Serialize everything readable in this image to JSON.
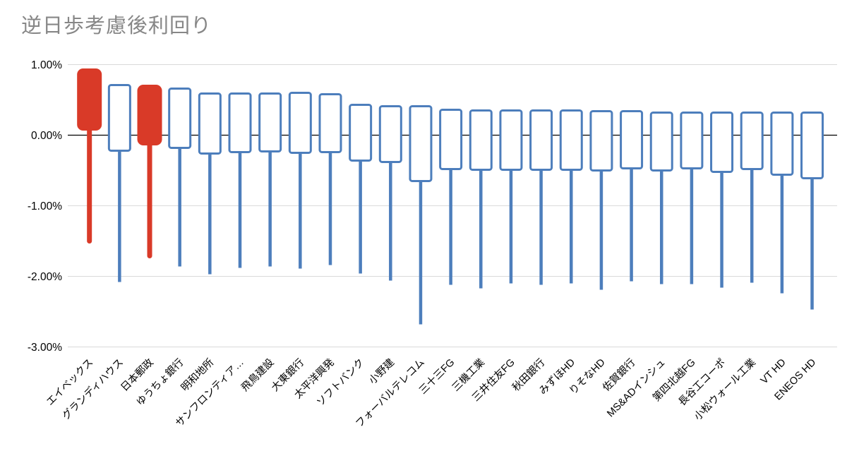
{
  "title": "逆日歩考慮後利回り",
  "colors": {
    "background": "#ffffff",
    "title_text": "#878787",
    "axis_text": "#000000",
    "gridline": "#dadada",
    "zero_line": "#000000",
    "candle_up_red": "#d93a28",
    "candle_down_blue": "#4d7ebc"
  },
  "chart_data": {
    "type": "candlestick",
    "title": "逆日歩考慮後利回り",
    "xlabel": "",
    "ylabel": "",
    "unit": "%",
    "ylim": [
      -3.0,
      1.0
    ],
    "grid": true,
    "legend": false,
    "y_ticks": [
      {
        "label": "1.00%",
        "value": 1.0
      },
      {
        "label": "0.00%",
        "value": 0.0
      },
      {
        "label": "-1.00%",
        "value": -1.0
      },
      {
        "label": "-2.00%",
        "value": -2.0
      },
      {
        "label": "-3.00%",
        "value": -3.0
      }
    ],
    "series": [
      {
        "label": "エイベックス",
        "body_top": 0.93,
        "body_bottom": 0.08,
        "low": -1.5,
        "variant": "red"
      },
      {
        "label": "グランディハウス",
        "body_top": 0.71,
        "body_bottom": -0.22,
        "low": -2.08,
        "variant": "blue"
      },
      {
        "label": "日本郵政",
        "body_top": 0.7,
        "body_bottom": -0.13,
        "low": -1.71,
        "variant": "red"
      },
      {
        "label": "ゆうちょ銀行",
        "body_top": 0.66,
        "body_bottom": -0.18,
        "low": -1.86,
        "variant": "blue"
      },
      {
        "label": "明和地所",
        "body_top": 0.59,
        "body_bottom": -0.26,
        "low": -1.97,
        "variant": "blue"
      },
      {
        "label": "サンフロンティア…",
        "body_top": 0.59,
        "body_bottom": -0.24,
        "low": -1.88,
        "variant": "blue"
      },
      {
        "label": "飛鳥建設",
        "body_top": 0.59,
        "body_bottom": -0.23,
        "low": -1.86,
        "variant": "blue"
      },
      {
        "label": "大東銀行",
        "body_top": 0.6,
        "body_bottom": -0.25,
        "low": -1.89,
        "variant": "blue"
      },
      {
        "label": "太平洋興発",
        "body_top": 0.58,
        "body_bottom": -0.24,
        "low": -1.84,
        "variant": "blue"
      },
      {
        "label": "ソフトバンク",
        "body_top": 0.43,
        "body_bottom": -0.36,
        "low": -1.96,
        "variant": "blue"
      },
      {
        "label": "小野建",
        "body_top": 0.41,
        "body_bottom": -0.38,
        "low": -2.06,
        "variant": "blue"
      },
      {
        "label": "フォーバルテレコム",
        "body_top": 0.41,
        "body_bottom": -0.65,
        "low": -2.68,
        "variant": "blue"
      },
      {
        "label": "三十三FG",
        "body_top": 0.36,
        "body_bottom": -0.48,
        "low": -2.12,
        "variant": "blue"
      },
      {
        "label": "三機工業",
        "body_top": 0.35,
        "body_bottom": -0.49,
        "low": -2.17,
        "variant": "blue"
      },
      {
        "label": "三井住友FG",
        "body_top": 0.35,
        "body_bottom": -0.49,
        "low": -2.1,
        "variant": "blue"
      },
      {
        "label": "秋田銀行",
        "body_top": 0.35,
        "body_bottom": -0.49,
        "low": -2.12,
        "variant": "blue"
      },
      {
        "label": "みずほHD",
        "body_top": 0.35,
        "body_bottom": -0.49,
        "low": -2.1,
        "variant": "blue"
      },
      {
        "label": "りそなHD",
        "body_top": 0.34,
        "body_bottom": -0.5,
        "low": -2.19,
        "variant": "blue"
      },
      {
        "label": "佐賀銀行",
        "body_top": 0.34,
        "body_bottom": -0.47,
        "low": -2.07,
        "variant": "blue"
      },
      {
        "label": "MS&ADインシュ",
        "body_top": 0.32,
        "body_bottom": -0.5,
        "low": -2.11,
        "variant": "blue"
      },
      {
        "label": "第四北越FG",
        "body_top": 0.32,
        "body_bottom": -0.47,
        "low": -2.11,
        "variant": "blue"
      },
      {
        "label": "長谷工コーポ",
        "body_top": 0.32,
        "body_bottom": -0.52,
        "low": -2.16,
        "variant": "blue"
      },
      {
        "label": "小松ウォール工業",
        "body_top": 0.32,
        "body_bottom": -0.48,
        "low": -2.09,
        "variant": "blue"
      },
      {
        "label": "VT HD",
        "body_top": 0.32,
        "body_bottom": -0.56,
        "low": -2.24,
        "variant": "blue"
      },
      {
        "label": "ENEOS HD",
        "body_top": 0.32,
        "body_bottom": -0.61,
        "low": -2.47,
        "variant": "blue"
      }
    ]
  }
}
